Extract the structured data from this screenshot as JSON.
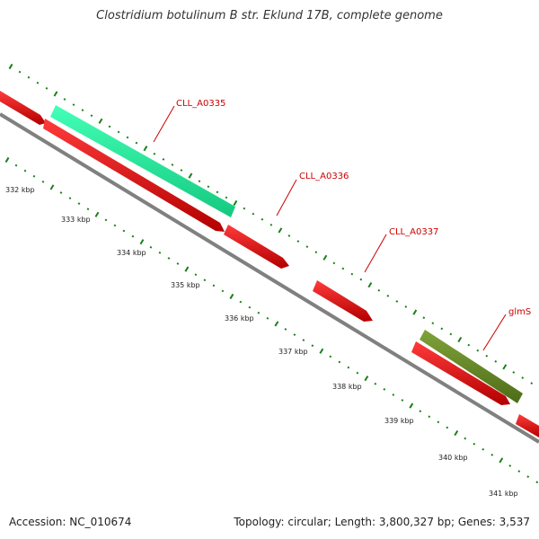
{
  "title": "Clostridium botulinum B str. Eklund 17B, complete genome",
  "footer": {
    "accession": "Accession: NC_010674",
    "topology": "Topology: circular; Length: 3,800,327 bp; Genes: 3,537"
  },
  "colors": {
    "cds_forward": "#ff1a1a",
    "cds_reverse": "#ff1a1a",
    "rrna_or_other": "#2ef0a0",
    "glmS_feature": "#6b8e23",
    "backbone": "#7f7f7f",
    "tick": "#1a7f1a",
    "label_red": "#cc0000"
  },
  "scale": {
    "tick_labels": [
      "332 kbp",
      "333 kbp",
      "334 kbp",
      "335 kbp",
      "336 kbp",
      "337 kbp",
      "338 kbp",
      "339 kbp",
      "340 kbp",
      "341 kbp"
    ]
  },
  "features": [
    {
      "name": "CLL_A0335",
      "type": "gene"
    },
    {
      "name": "CLL_A0336",
      "type": "gene"
    },
    {
      "name": "CLL_A0337",
      "type": "gene"
    },
    {
      "name": "glmS",
      "type": "gene"
    }
  ]
}
